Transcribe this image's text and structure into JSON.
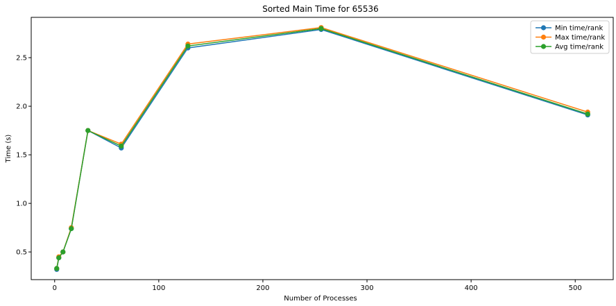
{
  "chart_data": {
    "type": "line",
    "title": "Sorted Main Time for 65536",
    "xlabel": "Number of Processes",
    "ylabel": "Time (s)",
    "xlim": [
      -22.5,
      536.5
    ],
    "ylim": [
      0.215,
      2.915
    ],
    "xticks": [
      0,
      100,
      200,
      300,
      400,
      500
    ],
    "yticks": [
      0.5,
      1.0,
      1.5,
      2.0,
      2.5
    ],
    "xtick_labels": [
      "0",
      "100",
      "200",
      "300",
      "400",
      "500"
    ],
    "ytick_labels": [
      "0.5",
      "1.0",
      "1.5",
      "2.0",
      "2.5"
    ],
    "grid": false,
    "legend_position": "top-right",
    "x": [
      2,
      4,
      8,
      16,
      32,
      64,
      128,
      256,
      512
    ],
    "series": [
      {
        "name": "Min time/rank",
        "color": "#1f77b4",
        "marker": "circle",
        "values": [
          0.32,
          0.44,
          0.5,
          0.74,
          1.75,
          1.57,
          2.6,
          2.79,
          1.91
        ]
      },
      {
        "name": "Max time/rank",
        "color": "#ff7f0e",
        "marker": "circle",
        "values": [
          0.33,
          0.45,
          0.5,
          0.75,
          1.75,
          1.61,
          2.64,
          2.81,
          1.94
        ]
      },
      {
        "name": "Avg time/rank",
        "color": "#2ca02c",
        "marker": "circle",
        "values": [
          0.33,
          0.44,
          0.5,
          0.74,
          1.75,
          1.59,
          2.62,
          2.8,
          1.92
        ]
      }
    ]
  }
}
